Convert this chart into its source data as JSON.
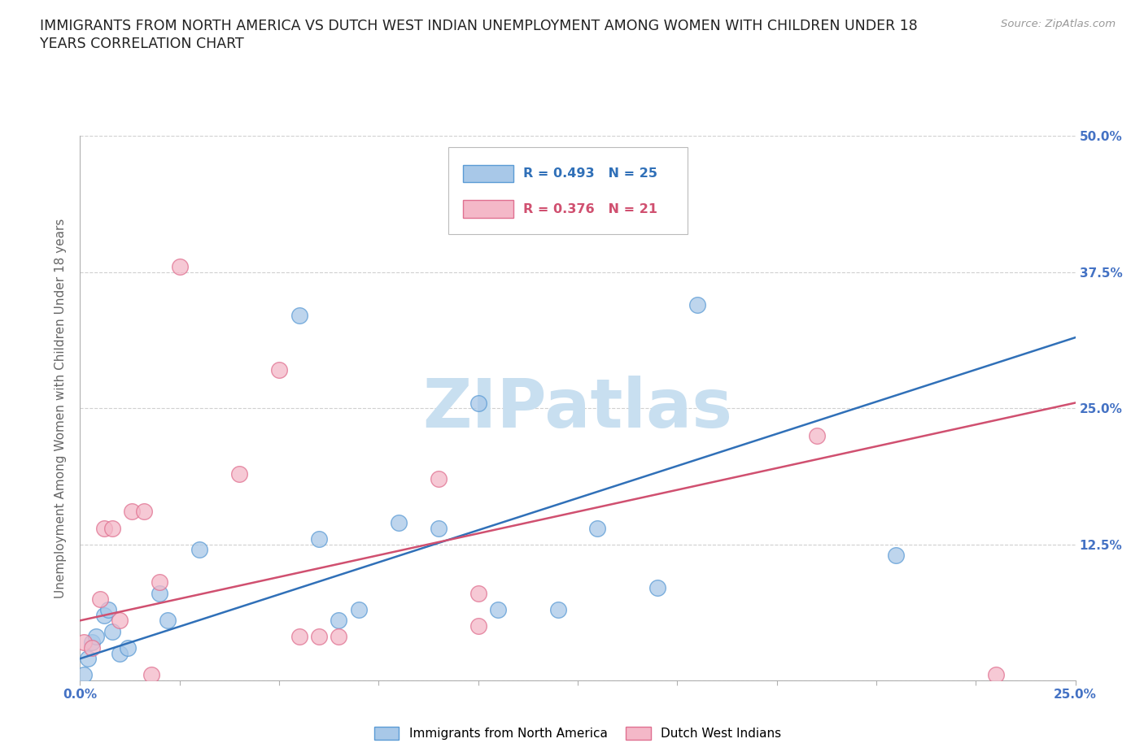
{
  "title_line1": "IMMIGRANTS FROM NORTH AMERICA VS DUTCH WEST INDIAN UNEMPLOYMENT AMONG WOMEN WITH CHILDREN UNDER 18",
  "title_line2": "YEARS CORRELATION CHART",
  "source": "Source: ZipAtlas.com",
  "ylabel": "Unemployment Among Women with Children Under 18 years",
  "xlim": [
    0.0,
    0.25
  ],
  "ylim": [
    0.0,
    0.5
  ],
  "legend_blue_r": "R = 0.493",
  "legend_blue_n": "N = 25",
  "legend_pink_r": "R = 0.376",
  "legend_pink_n": "N = 21",
  "blue_label": "Immigrants from North America",
  "pink_label": "Dutch West Indians",
  "watermark": "ZIPatlas",
  "blue_scatter_x": [
    0.001,
    0.002,
    0.003,
    0.004,
    0.006,
    0.007,
    0.008,
    0.01,
    0.012,
    0.02,
    0.022,
    0.03,
    0.055,
    0.06,
    0.065,
    0.07,
    0.08,
    0.09,
    0.1,
    0.105,
    0.12,
    0.13,
    0.145,
    0.155,
    0.205
  ],
  "blue_scatter_y": [
    0.005,
    0.02,
    0.035,
    0.04,
    0.06,
    0.065,
    0.045,
    0.025,
    0.03,
    0.08,
    0.055,
    0.12,
    0.335,
    0.13,
    0.055,
    0.065,
    0.145,
    0.14,
    0.255,
    0.065,
    0.065,
    0.14,
    0.085,
    0.345,
    0.115
  ],
  "pink_scatter_x": [
    0.001,
    0.003,
    0.005,
    0.006,
    0.008,
    0.01,
    0.013,
    0.016,
    0.018,
    0.02,
    0.025,
    0.04,
    0.05,
    0.055,
    0.06,
    0.065,
    0.09,
    0.1,
    0.1,
    0.185,
    0.23
  ],
  "pink_scatter_y": [
    0.035,
    0.03,
    0.075,
    0.14,
    0.14,
    0.055,
    0.155,
    0.155,
    0.005,
    0.09,
    0.38,
    0.19,
    0.285,
    0.04,
    0.04,
    0.04,
    0.185,
    0.08,
    0.05,
    0.225,
    0.005
  ],
  "blue_line_x": [
    0.0,
    0.25
  ],
  "blue_line_y": [
    0.02,
    0.315
  ],
  "pink_line_x": [
    0.0,
    0.25
  ],
  "pink_line_y": [
    0.055,
    0.255
  ],
  "blue_fill_color": "#a8c8e8",
  "blue_edge_color": "#5b9bd5",
  "pink_fill_color": "#f4b8c8",
  "pink_edge_color": "#e07090",
  "blue_line_color": "#3070b8",
  "pink_line_color": "#d05070",
  "background_color": "#ffffff",
  "grid_color": "#d0d0d0",
  "axis_color": "#b0b0b0",
  "title_color": "#222222",
  "tick_color": "#4472c4",
  "ylabel_color": "#666666",
  "source_color": "#999999",
  "watermark_color": "#c8dff0"
}
